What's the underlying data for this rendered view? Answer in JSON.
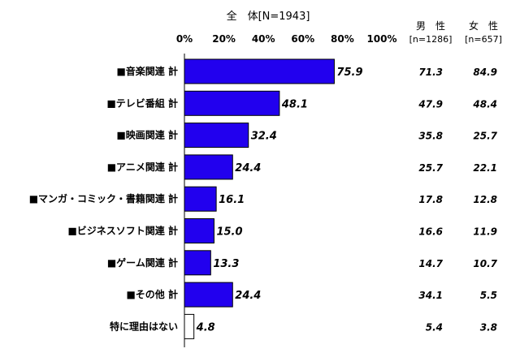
{
  "chart_data": {
    "type": "bar",
    "orientation": "horizontal",
    "title": "全　体[N=1943]",
    "categories": [
      "■音楽関連 計",
      "■テレビ番組 計",
      "■映画関連 計",
      "■アニメ関連 計",
      "■マンガ・コミック・書籍関連 計",
      "■ビジネスソフト関連 計",
      "■ゲーム関連 計",
      "■その他 計",
      "特に理由はない"
    ],
    "values": [
      75.9,
      48.1,
      32.4,
      24.4,
      16.1,
      15.0,
      13.3,
      24.4,
      4.8
    ],
    "value_labels": [
      "75.9",
      "48.1",
      "32.4",
      "24.4",
      "16.1",
      "15.0",
      "13.3",
      "24.4",
      "4.8"
    ],
    "xlim": [
      0,
      100
    ],
    "xticks": [
      "0%",
      "20%",
      "40%",
      "60%",
      "80%",
      "100%"
    ],
    "tick_values": [
      0,
      20,
      40,
      60,
      80,
      100
    ],
    "grid": false,
    "bar_color": "#2200ee",
    "last_bar_color": "#ffffff",
    "columns": [
      {
        "name": "男　性",
        "n_label": "[n=1286]",
        "values": [
          "71.3",
          "47.9",
          "35.8",
          "25.7",
          "17.8",
          "16.6",
          "14.7",
          "34.1",
          "5.4"
        ]
      },
      {
        "name": "女　性",
        "n_label": "[n=657]",
        "values": [
          "84.9",
          "48.4",
          "25.7",
          "22.1",
          "12.8",
          "11.9",
          "10.7",
          "5.5",
          "3.8"
        ]
      }
    ]
  }
}
